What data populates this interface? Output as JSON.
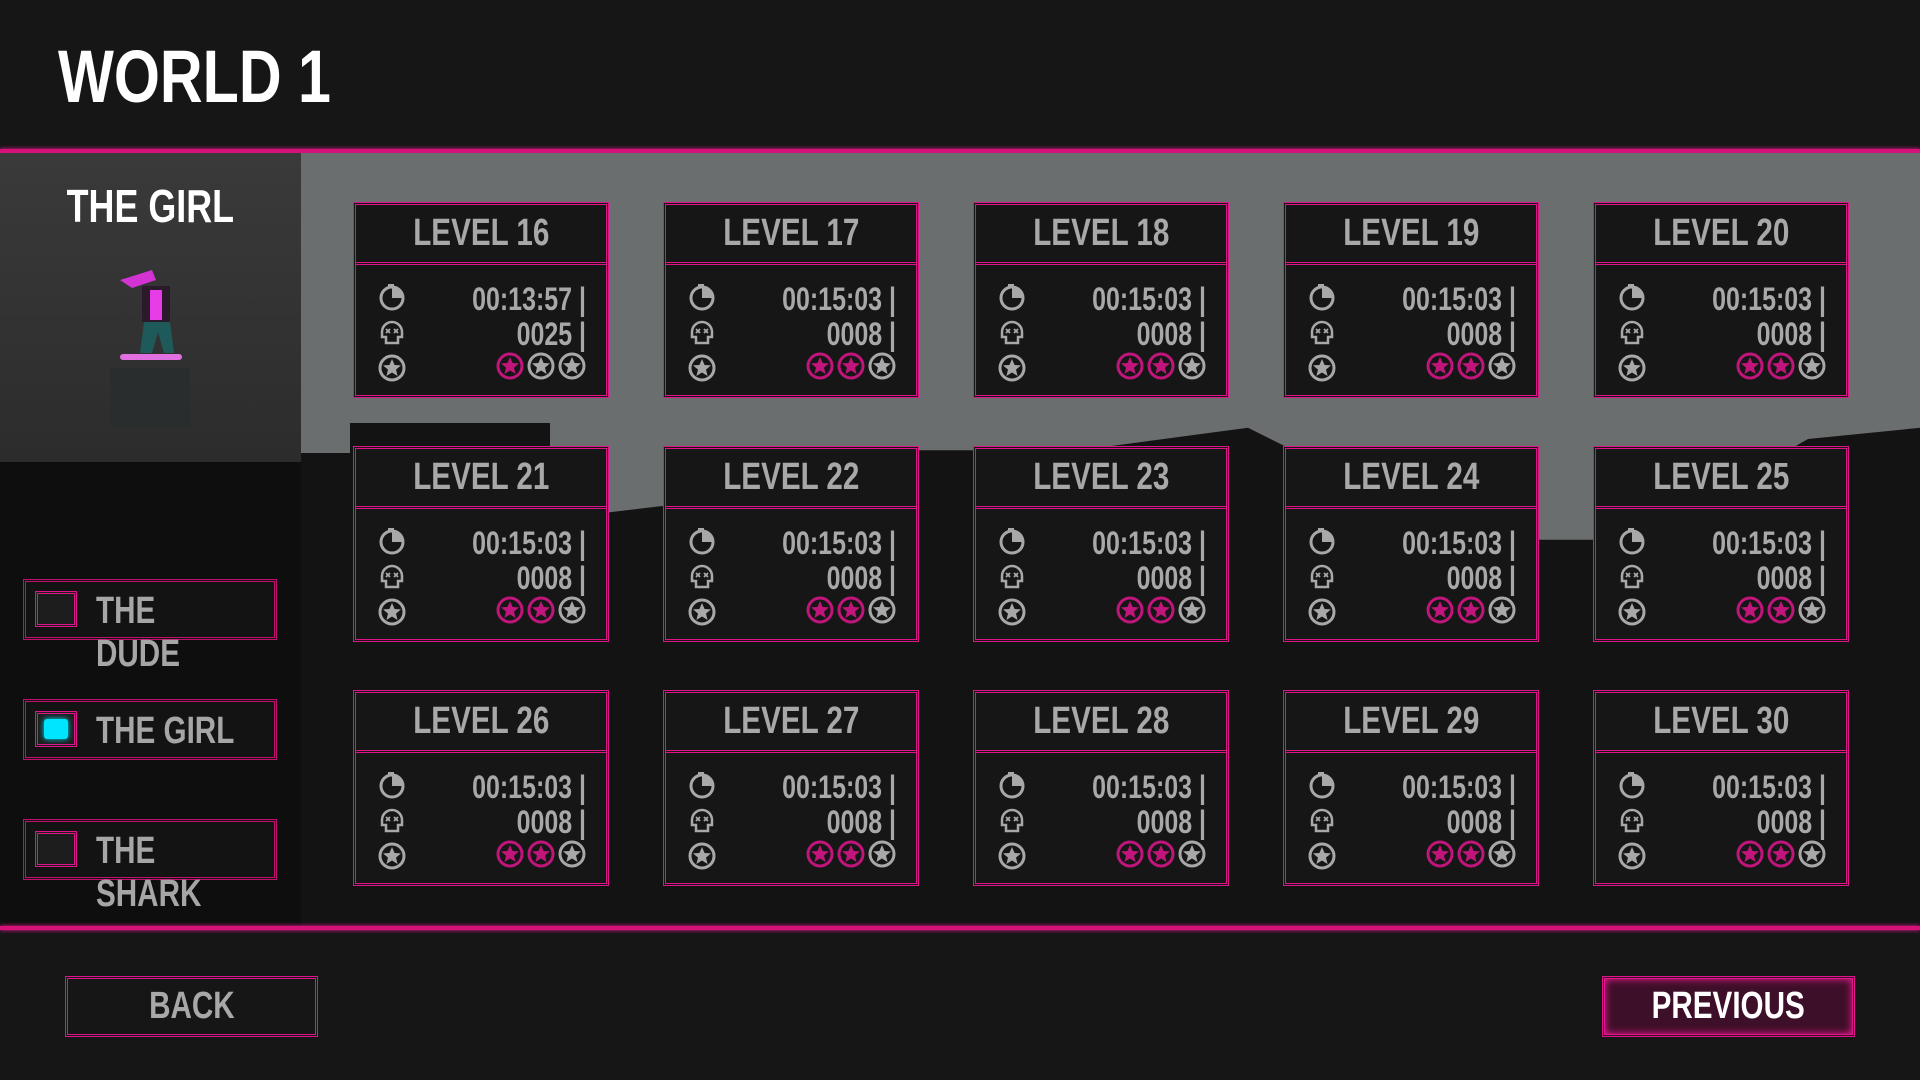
{
  "header": {
    "title": "WORLD 1"
  },
  "character": {
    "title": "THE GIRL",
    "options": [
      {
        "label": "THE DUDE",
        "selected": false
      },
      {
        "label": "THE GIRL",
        "selected": true
      },
      {
        "label": "THE SHARK",
        "selected": false
      }
    ]
  },
  "colors": {
    "accent": "#e0148a",
    "star_earned": "#c0157a",
    "star_empty": "#a8a8a8",
    "selected": "#00e5ff"
  },
  "levels": [
    {
      "name": "LEVEL 16",
      "time": "00:13:57 |",
      "deaths": "0025 |",
      "stars": 1
    },
    {
      "name": "LEVEL 17",
      "time": "00:15:03 |",
      "deaths": "0008 |",
      "stars": 2
    },
    {
      "name": "LEVEL 18",
      "time": "00:15:03 |",
      "deaths": "0008 |",
      "stars": 2
    },
    {
      "name": "LEVEL 19",
      "time": "00:15:03 |",
      "deaths": "0008 |",
      "stars": 2
    },
    {
      "name": "LEVEL 20",
      "time": "00:15:03 |",
      "deaths": "0008 |",
      "stars": 2
    },
    {
      "name": "LEVEL 21",
      "time": "00:15:03 |",
      "deaths": "0008 |",
      "stars": 2
    },
    {
      "name": "LEVEL 22",
      "time": "00:15:03 |",
      "deaths": "0008 |",
      "stars": 2
    },
    {
      "name": "LEVEL 23",
      "time": "00:15:03 |",
      "deaths": "0008 |",
      "stars": 2
    },
    {
      "name": "LEVEL 24",
      "time": "00:15:03 |",
      "deaths": "0008 |",
      "stars": 2
    },
    {
      "name": "LEVEL 25",
      "time": "00:15:03 |",
      "deaths": "0008 |",
      "stars": 2
    },
    {
      "name": "LEVEL 26",
      "time": "00:15:03 |",
      "deaths": "0008 |",
      "stars": 2
    },
    {
      "name": "LEVEL 27",
      "time": "00:15:03 |",
      "deaths": "0008 |",
      "stars": 2
    },
    {
      "name": "LEVEL 28",
      "time": "00:15:03 |",
      "deaths": "0008 |",
      "stars": 2
    },
    {
      "name": "LEVEL 29",
      "time": "00:15:03 |",
      "deaths": "0008 |",
      "stars": 2
    },
    {
      "name": "LEVEL 30",
      "time": "00:15:03 |",
      "deaths": "0008 |",
      "stars": 2
    }
  ],
  "max_stars": 3,
  "footer": {
    "back_label": "BACK",
    "previous_label": "PREVIOUS"
  }
}
